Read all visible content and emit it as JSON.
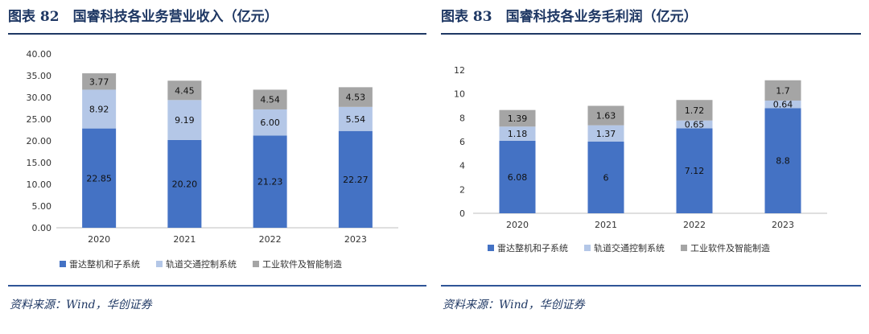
{
  "left": {
    "title": "图表 82　国睿科技各业务营业收入（亿元）",
    "source": "资料来源：Wind，华创证券"
  },
  "right": {
    "title": "图表 83　国睿科技各业务毛利润（亿元）",
    "source": "资料来源：Wind，华创证券"
  },
  "colors": {
    "title": "#1f3864",
    "series": [
      "#4472c4",
      "#b4c7e7",
      "#a5a5a5"
    ]
  },
  "chart_data": [
    {
      "type": "bar",
      "stacked": true,
      "categories": [
        "2020",
        "2021",
        "2022",
        "2023"
      ],
      "series": [
        {
          "name": "雷达整机和子系统",
          "values": [
            22.85,
            20.2,
            21.23,
            22.27
          ],
          "labels": [
            "22.85",
            "20.20",
            "21.23",
            "22.27"
          ]
        },
        {
          "name": "轨道交通控制系统",
          "values": [
            8.92,
            9.19,
            6.0,
            5.54
          ],
          "labels": [
            "8.92",
            "9.19",
            "6.00",
            "5.54"
          ]
        },
        {
          "name": "工业软件及智能制造",
          "values": [
            3.77,
            4.45,
            4.54,
            4.53
          ],
          "labels": [
            "3.77",
            "4.45",
            "4.54",
            "4.53"
          ]
        }
      ],
      "ylim": [
        0,
        40
      ],
      "yticks": [
        "0.00",
        "5.00",
        "10.00",
        "15.00",
        "20.00",
        "25.00",
        "30.00",
        "35.00",
        "40.00"
      ],
      "grid": false,
      "legend": "bottom"
    },
    {
      "type": "bar",
      "stacked": true,
      "categories": [
        "2020",
        "2021",
        "2022",
        "2023"
      ],
      "series": [
        {
          "name": "雷达整机和子系统",
          "values": [
            6.08,
            6,
            7.12,
            8.8
          ],
          "labels": [
            "6.08",
            "6",
            "7.12",
            "8.8"
          ]
        },
        {
          "name": "轨道交通控制系统",
          "values": [
            1.18,
            1.37,
            0.65,
            0.64
          ],
          "labels": [
            "1.18",
            "1.37",
            "0.65",
            "0.64"
          ]
        },
        {
          "name": "工业软件及智能制造",
          "values": [
            1.39,
            1.63,
            1.72,
            1.7
          ],
          "labels": [
            "1.39",
            "1.63",
            "1.72",
            "1.7"
          ]
        }
      ],
      "ylim": [
        0,
        12
      ],
      "yticks": [
        "0",
        "2",
        "4",
        "6",
        "8",
        "10",
        "12"
      ],
      "grid": false,
      "legend": "bottom"
    }
  ]
}
